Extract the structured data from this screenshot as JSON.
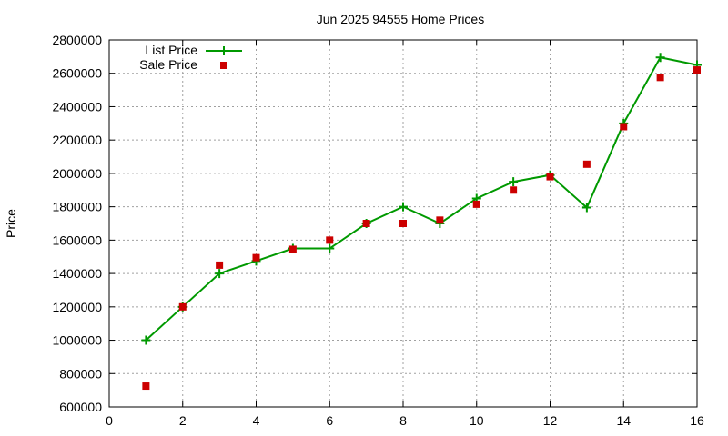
{
  "chart_data": {
    "type": "line",
    "title": "Jun 2025 94555 Home Prices",
    "xlabel": "",
    "ylabel": "Price",
    "xlim": [
      0,
      16
    ],
    "ylim": [
      600000,
      2800000
    ],
    "xticks": [
      0,
      2,
      4,
      6,
      8,
      10,
      12,
      14,
      16
    ],
    "yticks": [
      600000,
      800000,
      1000000,
      1200000,
      1400000,
      1600000,
      1800000,
      2000000,
      2200000,
      2400000,
      2600000,
      2800000
    ],
    "grid": true,
    "legend_position": "top-left",
    "series": [
      {
        "name": "List Price",
        "style": "line-plus",
        "color": "#009900",
        "points": [
          [
            1,
            1000000
          ],
          [
            2,
            1200000
          ],
          [
            3,
            1400000
          ],
          [
            4,
            1475000
          ],
          [
            5,
            1550000
          ],
          [
            6,
            1550000
          ],
          [
            7,
            1700000
          ],
          [
            8,
            1800000
          ],
          [
            9,
            1700000
          ],
          [
            10,
            1850000
          ],
          [
            11,
            1950000
          ],
          [
            12,
            1990000
          ],
          [
            13,
            1795000
          ],
          [
            14,
            2300000
          ],
          [
            15,
            2695000
          ],
          [
            16,
            2650000
          ]
        ]
      },
      {
        "name": "Sale Price",
        "style": "square-marker",
        "color": "#cc0000",
        "points": [
          [
            1,
            725000
          ],
          [
            2,
            1200000
          ],
          [
            3,
            1450000
          ],
          [
            4,
            1495000
          ],
          [
            5,
            1545000
          ],
          [
            6,
            1600000
          ],
          [
            7,
            1700000
          ],
          [
            8,
            1700000
          ],
          [
            9,
            1720000
          ],
          [
            10,
            1815000
          ],
          [
            11,
            1900000
          ],
          [
            12,
            1980000
          ],
          [
            13,
            2055000
          ],
          [
            14,
            2280000
          ],
          [
            15,
            2575000
          ],
          [
            16,
            2620000
          ]
        ]
      }
    ]
  }
}
